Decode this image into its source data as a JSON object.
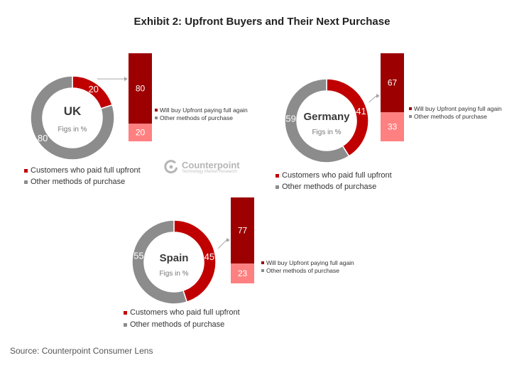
{
  "title": "Exhibit 2: Upfront Buyers and Their Next Purchase",
  "source": "Source: Counterpoint Consumer Lens",
  "watermark": {
    "name": "Counterpoint",
    "tagline": "Technology Market Research"
  },
  "colors": {
    "paid_upfront": "#c00000",
    "other_methods": "#8c8c8c",
    "buy_again": "#9c0000",
    "other_purchase": "#ff8080"
  },
  "chart_data": [
    {
      "type": "pie",
      "country": "UK",
      "note": "Figs in %",
      "slices": [
        {
          "label": "Customers who paid full upfront",
          "value": 20
        },
        {
          "label": "Other methods of purchase",
          "value": 80
        }
      ],
      "breakdown": [
        {
          "label": "Will buy Upfront paying full again",
          "value": 80
        },
        {
          "label": "Other methods of purchase",
          "value": 20
        }
      ]
    },
    {
      "type": "pie",
      "country": "Germany",
      "note": "Figs in %",
      "slices": [
        {
          "label": "Customers who paid full upfront",
          "value": 41
        },
        {
          "label": "Other methods of purchase",
          "value": 59
        }
      ],
      "breakdown": [
        {
          "label": "Will buy Upfront paying full again",
          "value": 67
        },
        {
          "label": "Other methods of purchase",
          "value": 33
        }
      ]
    },
    {
      "type": "pie",
      "country": "Spain",
      "note": "Figs in %",
      "slices": [
        {
          "label": "Customers who paid full upfront",
          "value": 45
        },
        {
          "label": "Other methods of purchase",
          "value": 55
        }
      ],
      "breakdown": [
        {
          "label": "Will buy Upfront paying full again",
          "value": 77
        },
        {
          "label": "Other methods of purchase",
          "value": 23
        }
      ]
    }
  ]
}
